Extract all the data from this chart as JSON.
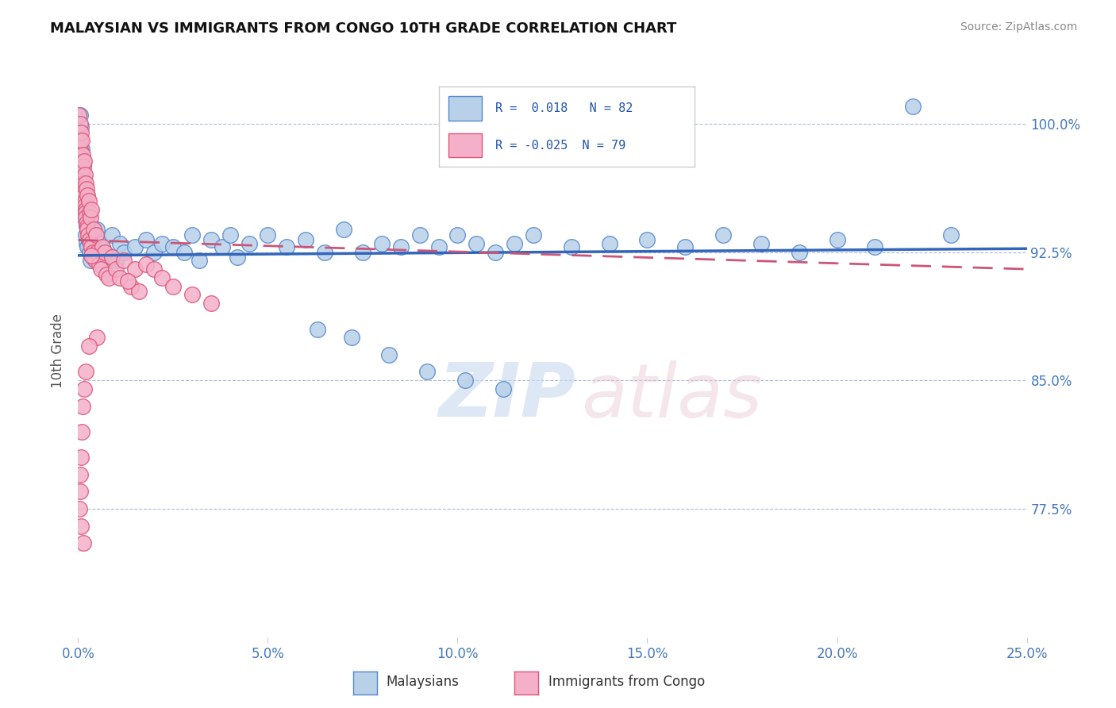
{
  "title": "MALAYSIAN VS IMMIGRANTS FROM CONGO 10TH GRADE CORRELATION CHART",
  "source": "Source: ZipAtlas.com",
  "ylabel": "10th Grade",
  "xlim": [
    0.0,
    25.0
  ],
  "ylim": [
    70.0,
    103.5
  ],
  "yticks": [
    77.5,
    85.0,
    92.5,
    100.0
  ],
  "ytick_labels": [
    "77.5%",
    "85.0%",
    "92.5%",
    "100.0%"
  ],
  "xticks": [
    0.0,
    5.0,
    10.0,
    15.0,
    20.0,
    25.0
  ],
  "xtick_labels": [
    "0.0%",
    "5.0%",
    "10.0%",
    "15.0%",
    "20.0%",
    "25.0%"
  ],
  "blue_R": 0.018,
  "blue_N": 82,
  "pink_R": -0.025,
  "pink_N": 79,
  "blue_color": "#b8d0e8",
  "blue_edge": "#5588cc",
  "pink_color": "#f4b0c8",
  "pink_edge": "#dd5577",
  "trend_blue": "#3366bb",
  "trend_pink": "#cc5577",
  "legend_label_blue": "Malaysians",
  "legend_label_pink": "Immigrants from Congo",
  "blue_trend_x0": 0.0,
  "blue_trend_y0": 92.3,
  "blue_trend_x1": 25.0,
  "blue_trend_y1": 92.7,
  "pink_trend_x0": 0.0,
  "pink_trend_y0": 93.2,
  "pink_trend_x1": 25.0,
  "pink_trend_y1": 91.5,
  "blue_scatter_x": [
    0.05,
    0.08,
    0.1,
    0.12,
    0.12,
    0.15,
    0.15,
    0.18,
    0.2,
    0.2,
    0.22,
    0.22,
    0.25,
    0.25,
    0.28,
    0.3,
    0.3,
    0.32,
    0.35,
    0.35,
    0.38,
    0.4,
    0.4,
    0.42,
    0.45,
    0.48,
    0.5,
    0.5,
    0.55,
    0.6,
    0.65,
    0.7,
    0.8,
    0.9,
    1.0,
    1.1,
    1.2,
    1.5,
    1.8,
    2.0,
    2.2,
    2.5,
    2.8,
    3.0,
    3.2,
    3.5,
    3.8,
    4.0,
    4.2,
    4.5,
    5.0,
    5.5,
    6.0,
    6.5,
    7.0,
    7.5,
    8.0,
    8.5,
    9.0,
    9.5,
    10.0,
    10.5,
    11.0,
    11.5,
    12.0,
    13.0,
    14.0,
    15.0,
    16.0,
    17.0,
    18.0,
    19.0,
    20.0,
    21.0,
    22.0,
    23.0,
    6.3,
    7.2,
    8.2,
    9.2,
    10.2,
    11.2
  ],
  "blue_scatter_y": [
    100.5,
    99.8,
    98.5,
    97.5,
    96.5,
    95.5,
    94.5,
    96.0,
    93.5,
    95.0,
    94.0,
    93.0,
    93.8,
    92.8,
    93.2,
    92.5,
    93.5,
    92.0,
    93.0,
    94.0,
    92.2,
    93.5,
    92.8,
    93.0,
    92.5,
    93.2,
    92.0,
    93.8,
    92.3,
    93.0,
    92.7,
    92.5,
    92.0,
    93.5,
    92.0,
    93.0,
    92.5,
    92.8,
    93.2,
    92.5,
    93.0,
    92.8,
    92.5,
    93.5,
    92.0,
    93.2,
    92.8,
    93.5,
    92.2,
    93.0,
    93.5,
    92.8,
    93.2,
    92.5,
    93.8,
    92.5,
    93.0,
    92.8,
    93.5,
    92.8,
    93.5,
    93.0,
    92.5,
    93.0,
    93.5,
    92.8,
    93.0,
    93.2,
    92.8,
    93.5,
    93.0,
    92.5,
    93.2,
    92.8,
    101.0,
    93.5,
    88.0,
    87.5,
    86.5,
    85.5,
    85.0,
    84.5
  ],
  "pink_scatter_x": [
    0.02,
    0.03,
    0.05,
    0.05,
    0.06,
    0.07,
    0.08,
    0.08,
    0.09,
    0.1,
    0.1,
    0.11,
    0.12,
    0.12,
    0.13,
    0.13,
    0.14,
    0.15,
    0.15,
    0.16,
    0.17,
    0.18,
    0.18,
    0.19,
    0.2,
    0.2,
    0.21,
    0.22,
    0.23,
    0.24,
    0.25,
    0.25,
    0.27,
    0.28,
    0.3,
    0.3,
    0.32,
    0.33,
    0.35,
    0.35,
    0.38,
    0.4,
    0.42,
    0.45,
    0.48,
    0.5,
    0.55,
    0.6,
    0.65,
    0.7,
    0.75,
    0.8,
    0.9,
    1.0,
    1.1,
    1.2,
    1.4,
    1.5,
    1.6,
    1.8,
    2.0,
    2.2,
    2.5,
    3.0,
    3.5,
    0.35,
    1.3,
    0.5,
    0.28,
    0.2,
    0.15,
    0.12,
    0.1,
    0.08,
    0.06,
    0.05,
    0.03,
    0.08,
    0.13
  ],
  "pink_scatter_y": [
    100.5,
    99.5,
    100.0,
    98.5,
    99.0,
    98.0,
    97.5,
    99.5,
    97.0,
    97.8,
    99.0,
    97.2,
    96.8,
    98.2,
    96.5,
    97.5,
    96.2,
    96.0,
    97.8,
    95.8,
    95.5,
    95.2,
    97.0,
    95.0,
    94.8,
    96.5,
    94.5,
    94.2,
    96.2,
    94.0,
    93.8,
    95.8,
    93.5,
    95.5,
    93.2,
    94.8,
    93.0,
    94.5,
    92.8,
    95.0,
    92.5,
    92.2,
    93.8,
    92.0,
    93.5,
    92.5,
    91.8,
    91.5,
    92.8,
    92.5,
    91.2,
    91.0,
    92.2,
    91.5,
    91.0,
    92.0,
    90.5,
    91.5,
    90.2,
    91.8,
    91.5,
    91.0,
    90.5,
    90.0,
    89.5,
    92.3,
    90.8,
    87.5,
    87.0,
    85.5,
    84.5,
    83.5,
    82.0,
    80.5,
    79.5,
    78.5,
    77.5,
    76.5,
    75.5
  ]
}
